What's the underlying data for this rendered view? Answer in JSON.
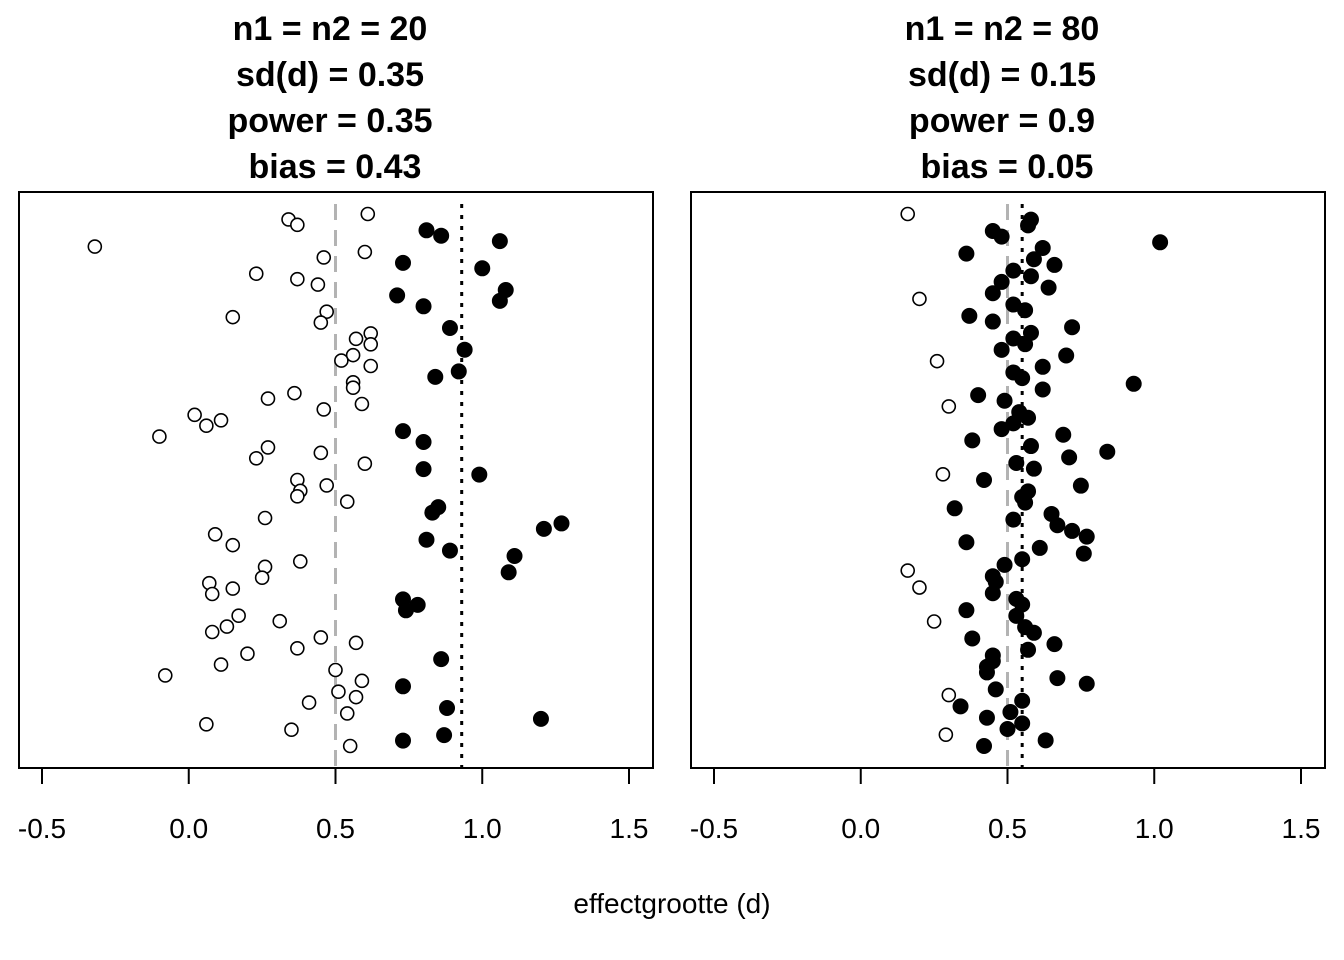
{
  "xlabel": "effectgrootte (d)",
  "chart_data": [
    {
      "type": "scatter",
      "title_lines": [
        "n1 = n2 = 20",
        "sd(d) = 0.35",
        "power =  0.35",
        "bias = 0.43"
      ],
      "xlim": [
        -0.5,
        1.5
      ],
      "xticks": [
        -0.5,
        0.0,
        0.5,
        1.0,
        1.5
      ],
      "xtick_labels": [
        "-0.5",
        "0.0",
        "0.5",
        "1.0",
        "1.5"
      ],
      "true_effect": 0.5,
      "mean_significant": 0.93,
      "significant": [
        0.83,
        1.11,
        0.73,
        0.94,
        0.8,
        1.21,
        1.06,
        0.73,
        1.09,
        0.73,
        0.84,
        0.86,
        0.73,
        0.86,
        1.27,
        0.89,
        0.74,
        1.08,
        0.89,
        0.85,
        1.06,
        0.81,
        0.88,
        0.87,
        1.0,
        0.99,
        1.2,
        0.8,
        0.8,
        0.81,
        0.78,
        0.92,
        0.71,
        0.73
      ],
      "nonsignificant": [
        0.37,
        0.45,
        0.09,
        0.36,
        0.44,
        0.2,
        0.59,
        0.27,
        -0.32,
        0.57,
        0.62,
        0.51,
        0.54,
        0.62,
        0.25,
        0.06,
        0.57,
        0.08,
        0.37,
        0.15,
        0.47,
        0.46,
        0.37,
        -0.1,
        0.17,
        0.15,
        0.54,
        0.56,
        0.27,
        0.26,
        0.45,
        0.11,
        0.38,
        0.23,
        0.56,
        0.57,
        0.08,
        0.23,
        0.62,
        0.37,
        0.5,
        0.35,
        0.41,
        -0.08,
        0.45,
        0.07,
        0.15,
        0.34,
        0.56,
        0.46,
        0.47,
        0.11,
        0.31,
        0.13,
        0.52,
        0.06,
        0.61,
        0.02,
        0.38,
        0.6,
        0.6,
        0.55,
        0.37,
        0.59,
        0.26
      ]
    },
    {
      "type": "scatter",
      "title_lines": [
        "n1 = n2 = 80",
        "sd(d) = 0.15",
        "power =  0.9",
        "bias = 0.05"
      ],
      "xlim": [
        -0.5,
        1.5
      ],
      "xticks": [
        -0.5,
        0.0,
        0.5,
        1.0,
        1.5
      ],
      "xtick_labels": [
        "-0.5",
        "0.0",
        "0.5",
        "1.0",
        "1.5"
      ],
      "true_effect": 0.5,
      "mean_significant": 0.55,
      "significant": [
        0.57,
        0.69,
        0.42,
        0.62,
        0.36,
        0.49,
        0.55,
        0.64,
        0.48,
        0.37,
        0.43,
        0.5,
        0.45,
        0.56,
        0.61,
        0.45,
        0.84,
        0.93,
        0.45,
        0.36,
        0.57,
        0.48,
        0.53,
        0.77,
        0.52,
        0.58,
        1.02,
        0.58,
        0.72,
        0.48,
        0.56,
        0.55,
        0.67,
        0.43,
        0.59,
        0.55,
        0.52,
        0.72,
        0.58,
        0.53,
        0.45,
        0.38,
        0.66,
        0.45,
        0.43,
        0.52,
        0.53,
        0.54,
        0.7,
        0.77,
        0.75,
        0.71,
        0.55,
        0.49,
        0.52,
        0.45,
        0.62,
        0.34,
        0.65,
        0.67,
        0.66,
        0.76,
        0.57,
        0.42,
        0.36,
        0.59,
        0.56,
        0.51,
        0.62,
        0.55,
        0.58,
        0.45,
        0.56,
        0.57,
        0.52,
        0.48,
        0.4,
        0.46,
        0.52,
        0.55,
        0.32,
        0.59,
        0.46,
        0.38,
        0.63
      ],
      "nonsignificant": [
        0.3,
        0.29,
        0.3,
        0.28,
        0.16,
        0.26,
        0.2,
        0.25,
        0.2,
        0.16
      ]
    }
  ]
}
